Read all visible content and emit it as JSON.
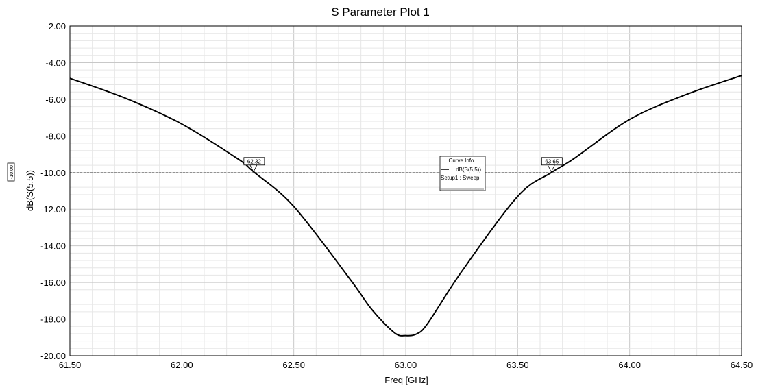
{
  "chart_data": {
    "type": "line",
    "title": "S Parameter Plot 1",
    "xlabel": "Freq [GHz]",
    "ylabel": "dB(S(5,5))",
    "xlim": [
      61.5,
      64.5
    ],
    "ylim": [
      -20,
      -2
    ],
    "x_ticks": [
      "61.50",
      "62.00",
      "62.50",
      "63.00",
      "63.50",
      "64.00",
      "64.50"
    ],
    "y_ticks": [
      "-2.00",
      "-4.00",
      "-6.00",
      "-8.00",
      "-10.00",
      "-12.00",
      "-14.00",
      "-16.00",
      "-18.00",
      "-20.00"
    ],
    "grid": true,
    "series": [
      {
        "name": "dB(S(5,5))",
        "color": "#000000",
        "x": [
          61.5,
          61.75,
          62.0,
          62.25,
          62.32,
          62.5,
          62.75,
          62.85,
          62.95,
          63.0,
          63.05,
          63.1,
          63.25,
          63.5,
          63.65,
          63.75,
          64.0,
          64.25,
          64.5
        ],
        "y": [
          -4.85,
          -5.95,
          -7.35,
          -9.25,
          -9.95,
          -11.85,
          -15.8,
          -17.5,
          -18.75,
          -18.9,
          -18.8,
          -18.2,
          -15.4,
          -11.3,
          -10.0,
          -9.25,
          -7.1,
          -5.75,
          -4.7
        ]
      }
    ],
    "reference_line": {
      "y": -10.0,
      "label": "-10.00"
    },
    "markers": [
      {
        "x": 62.32,
        "label": "62.32"
      },
      {
        "x": 63.65,
        "label": "63.65"
      }
    ],
    "legend": {
      "title": "Curve Info",
      "entry": "dB(S(5,5))",
      "sub": "Setup1 : Sweep",
      "placement": "center"
    }
  }
}
